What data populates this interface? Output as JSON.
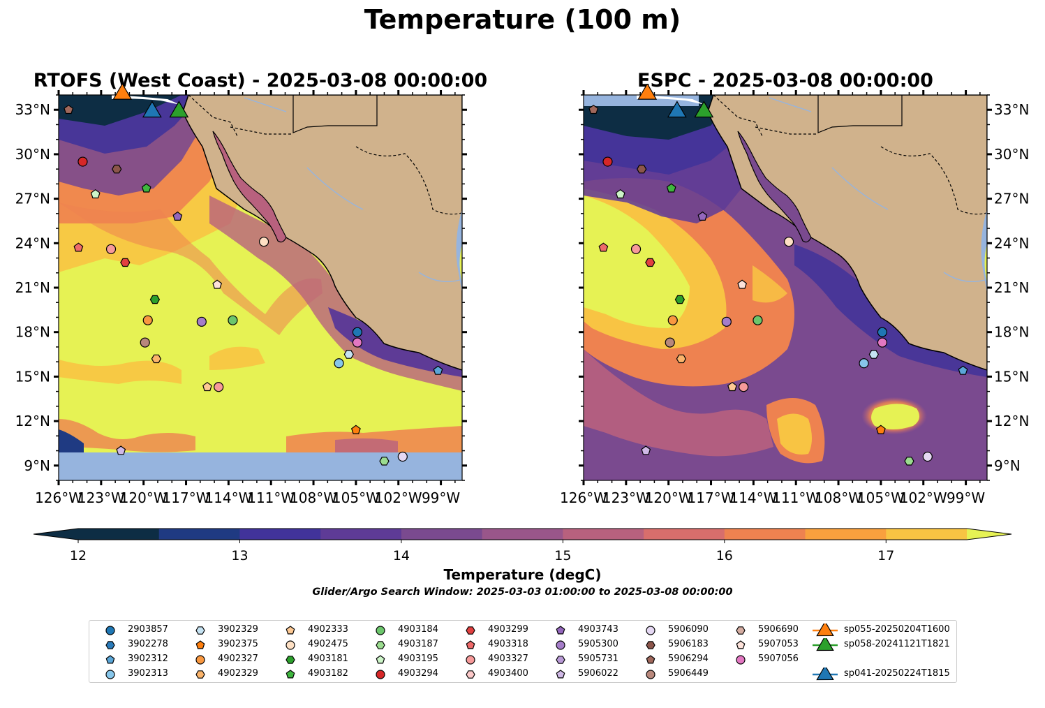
{
  "title": "Temperature (100 m)",
  "panels": [
    {
      "id": "rtofs",
      "title": "RTOFS (West Coast) - 2025-03-08 00:00:00"
    },
    {
      "id": "espc",
      "title": "ESPC - 2025-03-08 00:00:00"
    }
  ],
  "map_extent": {
    "lon": [
      -126,
      -97.5
    ],
    "lat": [
      8,
      34
    ]
  },
  "lat_ticks": [
    "33°N",
    "30°N",
    "27°N",
    "24°N",
    "21°N",
    "18°N",
    "15°N",
    "12°N",
    "9°N"
  ],
  "lon_ticks": [
    "126°W",
    "123°W",
    "120°W",
    "117°W",
    "114°W",
    "111°W",
    "108°W",
    "105°W",
    "102°W",
    "99°W"
  ],
  "colorbar": {
    "label": "Temperature (degC)",
    "ticks": [
      "12",
      "13",
      "14",
      "15",
      "16",
      "17"
    ],
    "min": 12,
    "max": 17.5,
    "step": 0.5,
    "colors": [
      "#0d2d44",
      "#1f3a82",
      "#41339a",
      "#5e3b96",
      "#7a4a8f",
      "#99568a",
      "#b8617e",
      "#d86e6c",
      "#ee8250",
      "#f9a03e",
      "#f8c443",
      "#e6f254"
    ]
  },
  "search_window": "Glider/Argo Search Window: 2025-03-03 01:00:00 to 2025-03-08 00:00:00",
  "legend": [
    {
      "label": "2903857",
      "marker": "circle",
      "color": "#1f77b4"
    },
    {
      "label": "3902278",
      "marker": "hexagon",
      "color": "#2b7bba"
    },
    {
      "label": "3902312",
      "marker": "pentagon",
      "color": "#5aa6d8"
    },
    {
      "label": "3902313",
      "marker": "circle",
      "color": "#87c6ea"
    },
    {
      "label": "3902329",
      "marker": "hexagon",
      "color": "#c6e3f3"
    },
    {
      "label": "3902375",
      "marker": "pentagon",
      "color": "#ff7f0e"
    },
    {
      "label": "4902327",
      "marker": "circle",
      "color": "#f99840"
    },
    {
      "label": "4902329",
      "marker": "hexagon",
      "color": "#fbb46b"
    },
    {
      "label": "4902333",
      "marker": "pentagon",
      "color": "#fdc994"
    },
    {
      "label": "4902475",
      "marker": "circle",
      "color": "#fee0c4"
    },
    {
      "label": "4903181",
      "marker": "hexagon",
      "color": "#2ca02c"
    },
    {
      "label": "4903182",
      "marker": "pentagon",
      "color": "#3fb63f"
    },
    {
      "label": "4903184",
      "marker": "circle",
      "color": "#6cc66c"
    },
    {
      "label": "4903187",
      "marker": "hexagon",
      "color": "#9bdc8f"
    },
    {
      "label": "4903195",
      "marker": "pentagon",
      "color": "#cdf5c8"
    },
    {
      "label": "4903294",
      "marker": "circle",
      "color": "#d62728"
    },
    {
      "label": "4903299",
      "marker": "hexagon",
      "color": "#e24040"
    },
    {
      "label": "4903318",
      "marker": "pentagon",
      "color": "#ef6a6a"
    },
    {
      "label": "4903327",
      "marker": "circle",
      "color": "#f79a9a"
    },
    {
      "label": "4903400",
      "marker": "hexagon",
      "color": "#fcc9c9"
    },
    {
      "label": "4903743",
      "marker": "pentagon",
      "color": "#9467bd"
    },
    {
      "label": "5905300",
      "marker": "circle",
      "color": "#a57dc9"
    },
    {
      "label": "5905731",
      "marker": "hexagon",
      "color": "#b99ad6"
    },
    {
      "label": "5906022",
      "marker": "pentagon",
      "color": "#d0b9e6"
    },
    {
      "label": "5906090",
      "marker": "circle",
      "color": "#e5d8f3"
    },
    {
      "label": "5906183",
      "marker": "hexagon",
      "color": "#8c564b"
    },
    {
      "label": "5906294",
      "marker": "pentagon",
      "color": "#a0685c"
    },
    {
      "label": "5906449",
      "marker": "circle",
      "color": "#b8887c"
    },
    {
      "label": "5906690",
      "marker": "hexagon",
      "color": "#d5ada2"
    },
    {
      "label": "5907053",
      "marker": "pentagon",
      "color": "#fde2da"
    },
    {
      "label": "5907056",
      "marker": "circle",
      "color": "#e377c2"
    },
    {
      "label": "sp041-20250224T1815",
      "marker": "triangle",
      "color": "#1f77b4"
    },
    {
      "label": "sp055-20250204T1600",
      "marker": "triangle",
      "color": "#ff7f0e"
    },
    {
      "label": "sp058-20241121T1821",
      "marker": "triangle",
      "color": "#2ca02c"
    }
  ],
  "stations": [
    {
      "lon": -125.3,
      "lat": 33.0,
      "marker": "pentagon",
      "color": "#a0685c"
    },
    {
      "lon": -124.3,
      "lat": 29.5,
      "marker": "circle",
      "color": "#d62728"
    },
    {
      "lon": -121.9,
      "lat": 29.0,
      "marker": "hexagon",
      "color": "#8c564b"
    },
    {
      "lon": -123.4,
      "lat": 27.3,
      "marker": "pentagon",
      "color": "#cdf5c8"
    },
    {
      "lon": -119.8,
      "lat": 27.7,
      "marker": "pentagon",
      "color": "#3fb63f"
    },
    {
      "lon": -117.6,
      "lat": 25.8,
      "marker": "pentagon",
      "color": "#9467bd"
    },
    {
      "lon": -124.6,
      "lat": 23.7,
      "marker": "pentagon",
      "color": "#ef6a6a"
    },
    {
      "lon": -122.3,
      "lat": 23.6,
      "marker": "circle",
      "color": "#f79a9a"
    },
    {
      "lon": -121.3,
      "lat": 22.7,
      "marker": "hexagon",
      "color": "#e24040"
    },
    {
      "lon": -111.5,
      "lat": 24.1,
      "marker": "circle",
      "color": "#fee0c4"
    },
    {
      "lon": -114.8,
      "lat": 21.2,
      "marker": "pentagon",
      "color": "#fde2da"
    },
    {
      "lon": -119.2,
      "lat": 20.2,
      "marker": "hexagon",
      "color": "#2ca02c"
    },
    {
      "lon": -119.7,
      "lat": 18.8,
      "marker": "circle",
      "color": "#f99840"
    },
    {
      "lon": -115.9,
      "lat": 18.7,
      "marker": "circle",
      "color": "#a57dc9"
    },
    {
      "lon": -113.7,
      "lat": 18.8,
      "marker": "circle",
      "color": "#6cc66c"
    },
    {
      "lon": -119.9,
      "lat": 17.3,
      "marker": "circle",
      "color": "#b8887c"
    },
    {
      "lon": -119.1,
      "lat": 16.2,
      "marker": "hexagon",
      "color": "#fbb46b"
    },
    {
      "lon": -104.9,
      "lat": 18.0,
      "marker": "circle",
      "color": "#1f77b4"
    },
    {
      "lon": -104.9,
      "lat": 17.3,
      "marker": "circle",
      "color": "#e377c2"
    },
    {
      "lon": -106.2,
      "lat": 15.9,
      "marker": "circle",
      "color": "#87c6ea"
    },
    {
      "lon": -105.5,
      "lat": 16.5,
      "marker": "hexagon",
      "color": "#c6e3f3"
    },
    {
      "lon": -115.5,
      "lat": 14.3,
      "marker": "pentagon",
      "color": "#fdc994"
    },
    {
      "lon": -114.7,
      "lat": 14.3,
      "marker": "circle",
      "color": "#f79a9a"
    },
    {
      "lon": -99.2,
      "lat": 15.4,
      "marker": "pentagon",
      "color": "#5aa6d8"
    },
    {
      "lon": -105.0,
      "lat": 11.4,
      "marker": "pentagon",
      "color": "#ff7f0e"
    },
    {
      "lon": -121.6,
      "lat": 10.0,
      "marker": "pentagon",
      "color": "#d0b9e6"
    },
    {
      "lon": -103.0,
      "lat": 9.3,
      "marker": "hexagon",
      "color": "#9bdc8f"
    },
    {
      "lon": -101.7,
      "lat": 9.6,
      "marker": "circle",
      "color": "#e5d8f3"
    },
    {
      "lon": -119.4,
      "lat": 33.0,
      "marker": "triangle",
      "color": "#1f77b4"
    },
    {
      "lon": -121.5,
      "lat": 34.2,
      "marker": "triangle",
      "color": "#ff7f0e"
    },
    {
      "lon": -117.5,
      "lat": 33.0,
      "marker": "triangle",
      "color": "#2ca02c"
    }
  ]
}
